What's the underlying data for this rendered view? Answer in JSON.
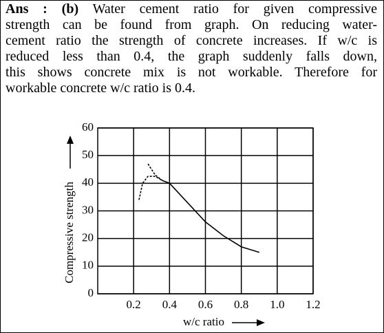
{
  "answer": {
    "label": "Ans :",
    "option": "(b)",
    "lines": [
      "Water cement ratio for given compressive",
      "strength can be found from graph. On reducing water-",
      "cement ratio the strength of concrete increases. If w/c is",
      "reduced less than 0.4, the graph suddenly falls down,",
      "this shows concrete mix is not workable. Therefore for",
      "workable concrete w/c ratio is 0.4."
    ]
  },
  "chart_data": {
    "type": "line",
    "x_label": "w/c ratio",
    "y_label": "Compressive strength",
    "xlim": [
      0,
      1.2
    ],
    "ylim": [
      0,
      60
    ],
    "xticks": [
      0.2,
      0.4,
      0.6,
      0.8,
      {
        "value": 1,
        "label": "1.0"
      },
      1.2
    ],
    "yticks": [
      0,
      10,
      20,
      30,
      40,
      50,
      60
    ],
    "grid": true,
    "series": [
      {
        "color": "#000000",
        "style": "solid",
        "x": [
          0.4,
          0.5,
          0.6,
          0.7,
          0.8,
          0.9
        ],
        "values": [
          40,
          33,
          26,
          21,
          17,
          15
        ]
      },
      {
        "color": "#000000",
        "style": "dashed",
        "x": [
          0.28,
          0.32,
          0.36,
          0.4
        ],
        "values": [
          47,
          43,
          41,
          40
        ]
      },
      {
        "color": "#000000",
        "style": "dashed",
        "x": [
          0.23,
          0.25,
          0.28,
          0.32,
          0.36,
          0.4
        ],
        "values": [
          34,
          40,
          42.5,
          42.5,
          41,
          40
        ]
      }
    ]
  }
}
